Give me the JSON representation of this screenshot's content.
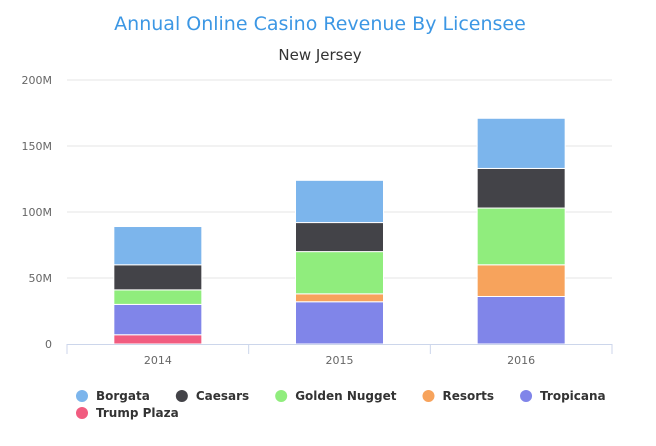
{
  "chart_data": {
    "type": "bar",
    "stacked": true,
    "title": "Annual Online Casino Revenue By Licensee",
    "subtitle": "New Jersey",
    "categories": [
      "2014",
      "2015",
      "2016"
    ],
    "series": [
      {
        "name": "Borgata",
        "color": "#7cb5ec",
        "values": [
          29,
          32,
          38
        ]
      },
      {
        "name": "Caesars",
        "color": "#434348",
        "values": [
          19,
          22,
          30
        ]
      },
      {
        "name": "Golden Nugget",
        "color": "#90ed7d",
        "values": [
          11,
          32,
          43
        ]
      },
      {
        "name": "Resorts",
        "color": "#f7a35c",
        "values": [
          0,
          6,
          24
        ]
      },
      {
        "name": "Tropicana",
        "color": "#8085e9",
        "values": [
          23,
          32,
          36
        ]
      },
      {
        "name": "Trump Plaza",
        "color": "#f15c80",
        "values": [
          7,
          0,
          0
        ]
      }
    ],
    "ylim": [
      0,
      200
    ],
    "yticks": [
      "0",
      "50M",
      "100M",
      "150M",
      "200M"
    ],
    "ytick_values": [
      0,
      50,
      100,
      150,
      200
    ],
    "grid": true,
    "legend_position": "bottom-left",
    "title_color": "#3c97e4"
  }
}
